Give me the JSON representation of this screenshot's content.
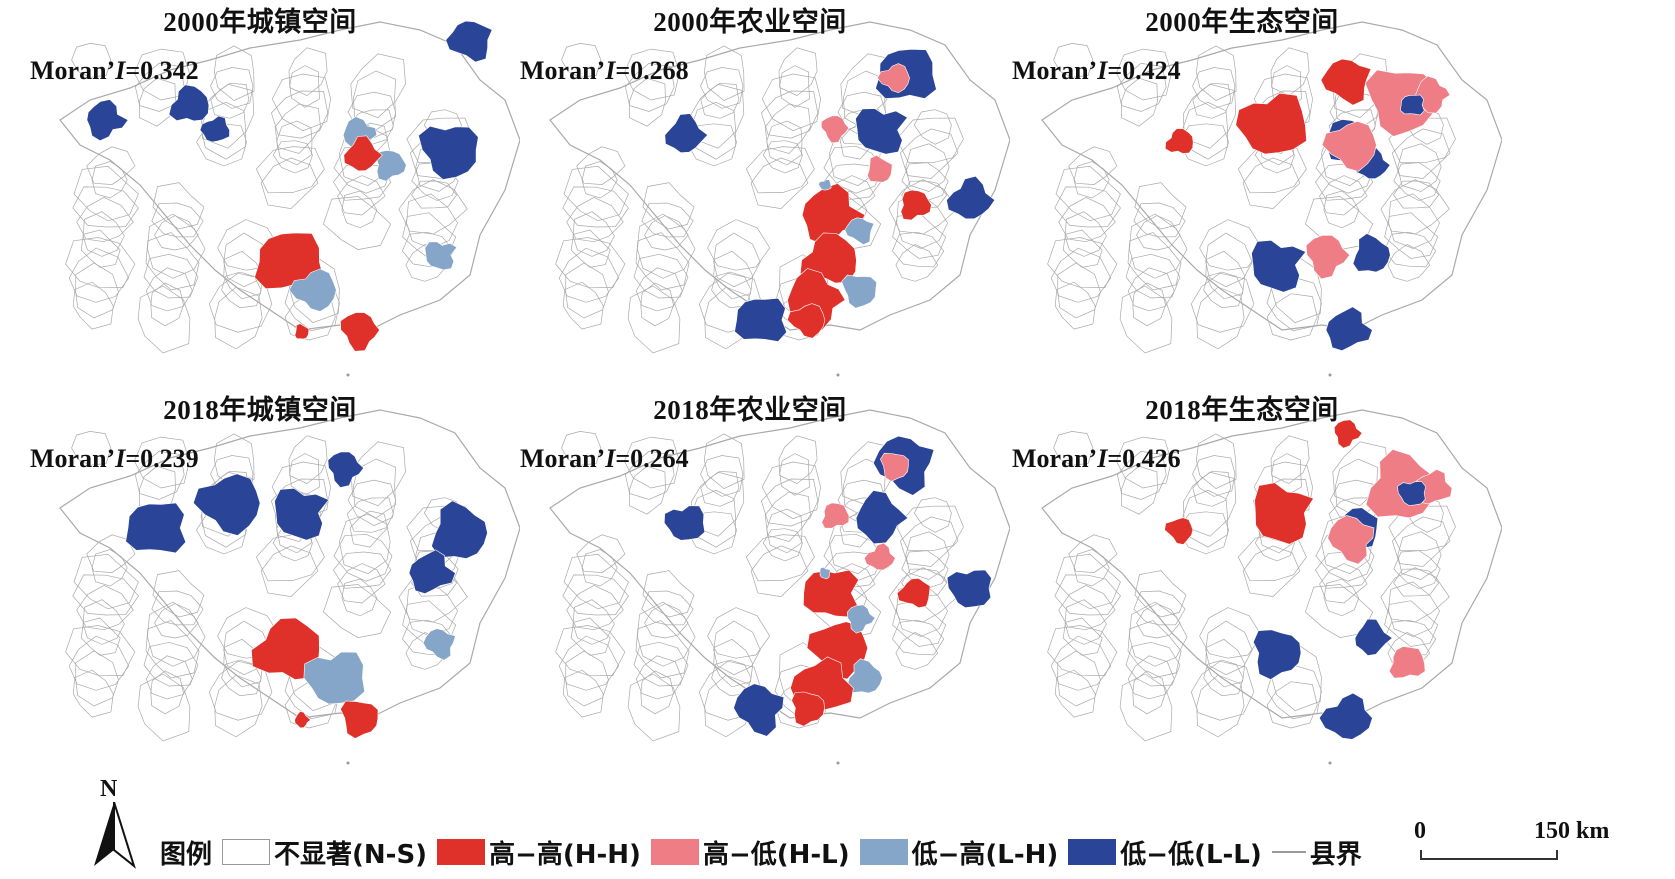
{
  "colors": {
    "ns": "#ffffff",
    "hh": "#e0302a",
    "hl": "#ef7d86",
    "lh": "#86a6c9",
    "ll": "#2a4597",
    "boundary": "#a9a9a9"
  },
  "panels": [
    {
      "title": "2000年城镇空间",
      "moran_prefix": "Moran’",
      "moran_i": "I",
      "moran_value": "=0.342"
    },
    {
      "title": "2000年农业空间",
      "moran_prefix": "Moran’",
      "moran_i": "I",
      "moran_value": "=0.268"
    },
    {
      "title": "2000年生态空间",
      "moran_prefix": "Moran’",
      "moran_i": "I",
      "moran_value": "=0.424"
    },
    {
      "title": "2018年城镇空间",
      "moran_prefix": "Moran’",
      "moran_i": "I",
      "moran_value": "=0.239"
    },
    {
      "title": "2018年农业空间",
      "moran_prefix": "Moran’",
      "moran_i": "I",
      "moran_value": "=0.264"
    },
    {
      "title": "2018年生态空间",
      "moran_prefix": "Moran’",
      "moran_i": "I",
      "moran_value": "=0.426"
    }
  ],
  "legend": {
    "title": "图例",
    "items": [
      {
        "label": "不显著(N-S)",
        "class": "ns"
      },
      {
        "label": "高−高(H-H)",
        "class": "hh"
      },
      {
        "label": "高−低(H-L)",
        "class": "hl"
      },
      {
        "label": "低−高(L-H)",
        "class": "lh"
      },
      {
        "label": "低−低(L-L)",
        "class": "ll"
      }
    ],
    "boundary_label": "县界"
  },
  "north_label": "N",
  "scale": {
    "start": "0",
    "end": "150 km"
  }
}
